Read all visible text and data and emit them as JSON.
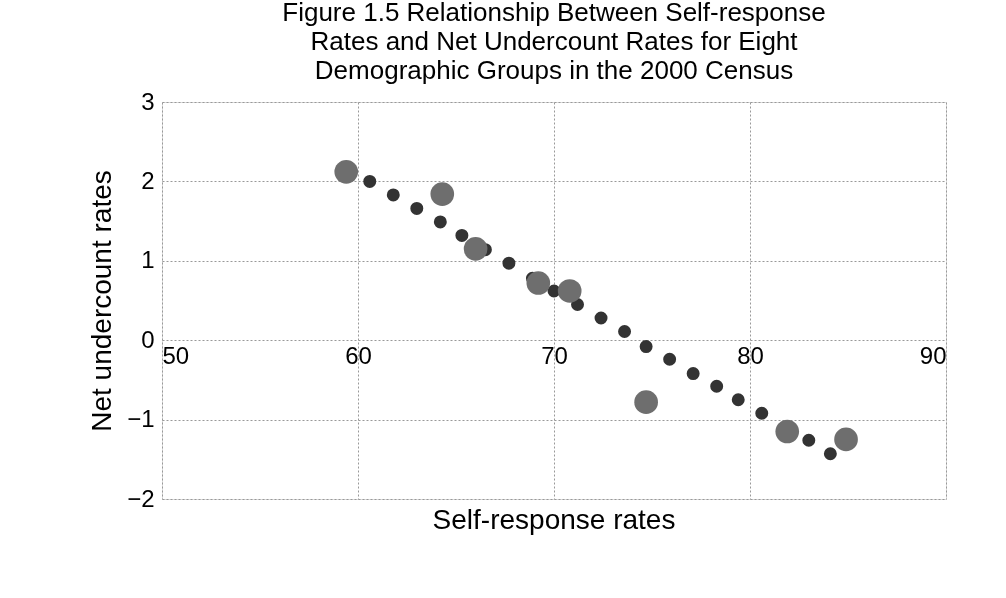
{
  "chart_data": {
    "type": "bubble",
    "title": "Figure 1.5 Relationship Between Self-response Rates and Net Undercount Rates for Eight Demographic Groups in the 2000 Census",
    "xlabel": "Self-response rates",
    "ylabel": "Net undercount rates",
    "xlim": [
      50,
      90
    ],
    "xticks": [
      50,
      60,
      70,
      80,
      90
    ],
    "ylim": [
      -2,
      3
    ],
    "yticks": [
      -2,
      -1,
      0,
      1,
      2,
      3
    ],
    "grid": true,
    "marker": "circle",
    "series": [
      {
        "color": "#333333",
        "x": [
          60.6,
          61.8,
          63.0,
          64.2,
          65.3,
          66.5,
          67.7,
          68.9,
          70.0,
          71.2,
          72.4,
          73.6,
          74.7,
          75.9,
          77.1,
          78.3,
          79.4,
          80.6,
          83.0,
          84.1
        ],
        "values": [
          2.0,
          1.83,
          1.66,
          1.49,
          1.32,
          1.14,
          0.97,
          0.78,
          0.62,
          0.45,
          0.28,
          0.11,
          -0.08,
          -0.24,
          -0.42,
          -0.58,
          -0.75,
          -0.92,
          -1.26,
          -1.43
        ],
        "sizes": [
          0.3,
          0.3,
          0.3,
          0.3,
          0.3,
          0.3,
          0.3,
          0.3,
          0.3,
          0.3,
          0.3,
          0.3,
          0.3,
          0.3,
          0.3,
          0.3,
          0.3,
          0.3,
          0.3,
          0.3
        ]
      },
      {
        "color": "#6e6e6e",
        "x": [
          59.4,
          64.3,
          66.0,
          69.2,
          70.8,
          74.7,
          81.9,
          84.9
        ],
        "values": [
          2.12,
          1.84,
          1.15,
          0.72,
          0.62,
          -0.78,
          -1.15,
          -1.25
        ],
        "sizes": [
          1,
          1,
          1,
          1,
          1,
          1,
          1,
          1
        ]
      }
    ]
  }
}
